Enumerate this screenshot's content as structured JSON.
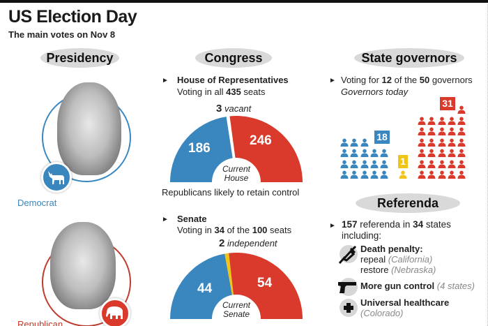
{
  "header": {
    "title": "US Election Day",
    "subtitle": "The main votes on Nov 8"
  },
  "sections": {
    "presidency": "Presidency",
    "congress": "Congress",
    "governors": "State governors",
    "referenda": "Referenda"
  },
  "presidency": {
    "candidates": [
      {
        "party": "Democrat",
        "color": "#3a87c0",
        "icon": "donkey-icon"
      },
      {
        "party": "Republican",
        "color": "#d93a2b",
        "icon": "elephant-icon"
      }
    ]
  },
  "house": {
    "heading": "House of Representatives",
    "voting_prefix": "Voting in all ",
    "voting_num": "435",
    "voting_suffix": " seats",
    "vacant_num": "3",
    "vacant_label": "vacant",
    "dem": "186",
    "rep": "246",
    "center_line1": "Current",
    "center_line2": "House",
    "note": "Republicans likely to retain control"
  },
  "senate": {
    "heading": "Senate",
    "voting_prefix": "Voting in ",
    "voting_num1": "34",
    "voting_mid": " of the ",
    "voting_num2": "100",
    "voting_suffix": " seats",
    "indep_num": "2",
    "indep_label": "independent",
    "dem": "44",
    "rep": "54",
    "center_line1": "Current",
    "center_line2": "Senate"
  },
  "governors": {
    "voting_prefix": "Voting for ",
    "voting_num1": "12",
    "voting_mid": " of the ",
    "voting_num2": "50",
    "voting_suffix": " governors",
    "today_label": "Governors today",
    "dem": "18",
    "ind": "1",
    "rep": "31"
  },
  "referenda": {
    "count": "157",
    "mid": " referenda in ",
    "states": "34",
    "suffix": " states",
    "including": "including:",
    "items": [
      {
        "title": "Death penalty:",
        "line2": "repeal",
        "line2_note": "(California)",
        "line3": "restore",
        "line3_note": "(Nebraska)",
        "icon": "syringe-icon"
      },
      {
        "title": "More gun control",
        "note": "(4 states)",
        "icon": "gun-icon"
      },
      {
        "title": "Universal healthcare",
        "note": "(Colorado)",
        "icon": "medical-cross-icon"
      }
    ]
  },
  "colors": {
    "democrat": "#3a87c0",
    "republican": "#d93a2b",
    "independent": "#f0c419",
    "pill": "#d9d9d9"
  },
  "chart_data": [
    {
      "type": "pie",
      "title": "Current House",
      "categories": [
        "Democrats",
        "Vacant",
        "Republicans"
      ],
      "values": [
        186,
        3,
        246
      ],
      "total": 435,
      "note": "Republicans likely to retain control"
    },
    {
      "type": "pie",
      "title": "Current Senate",
      "categories": [
        "Democrats",
        "Independent",
        "Republicans"
      ],
      "values": [
        44,
        2,
        54
      ],
      "total": 100
    },
    {
      "type": "bar",
      "title": "Governors today",
      "categories": [
        "Democrats",
        "Independent",
        "Republicans"
      ],
      "values": [
        18,
        1,
        31
      ],
      "total": 50
    }
  ]
}
